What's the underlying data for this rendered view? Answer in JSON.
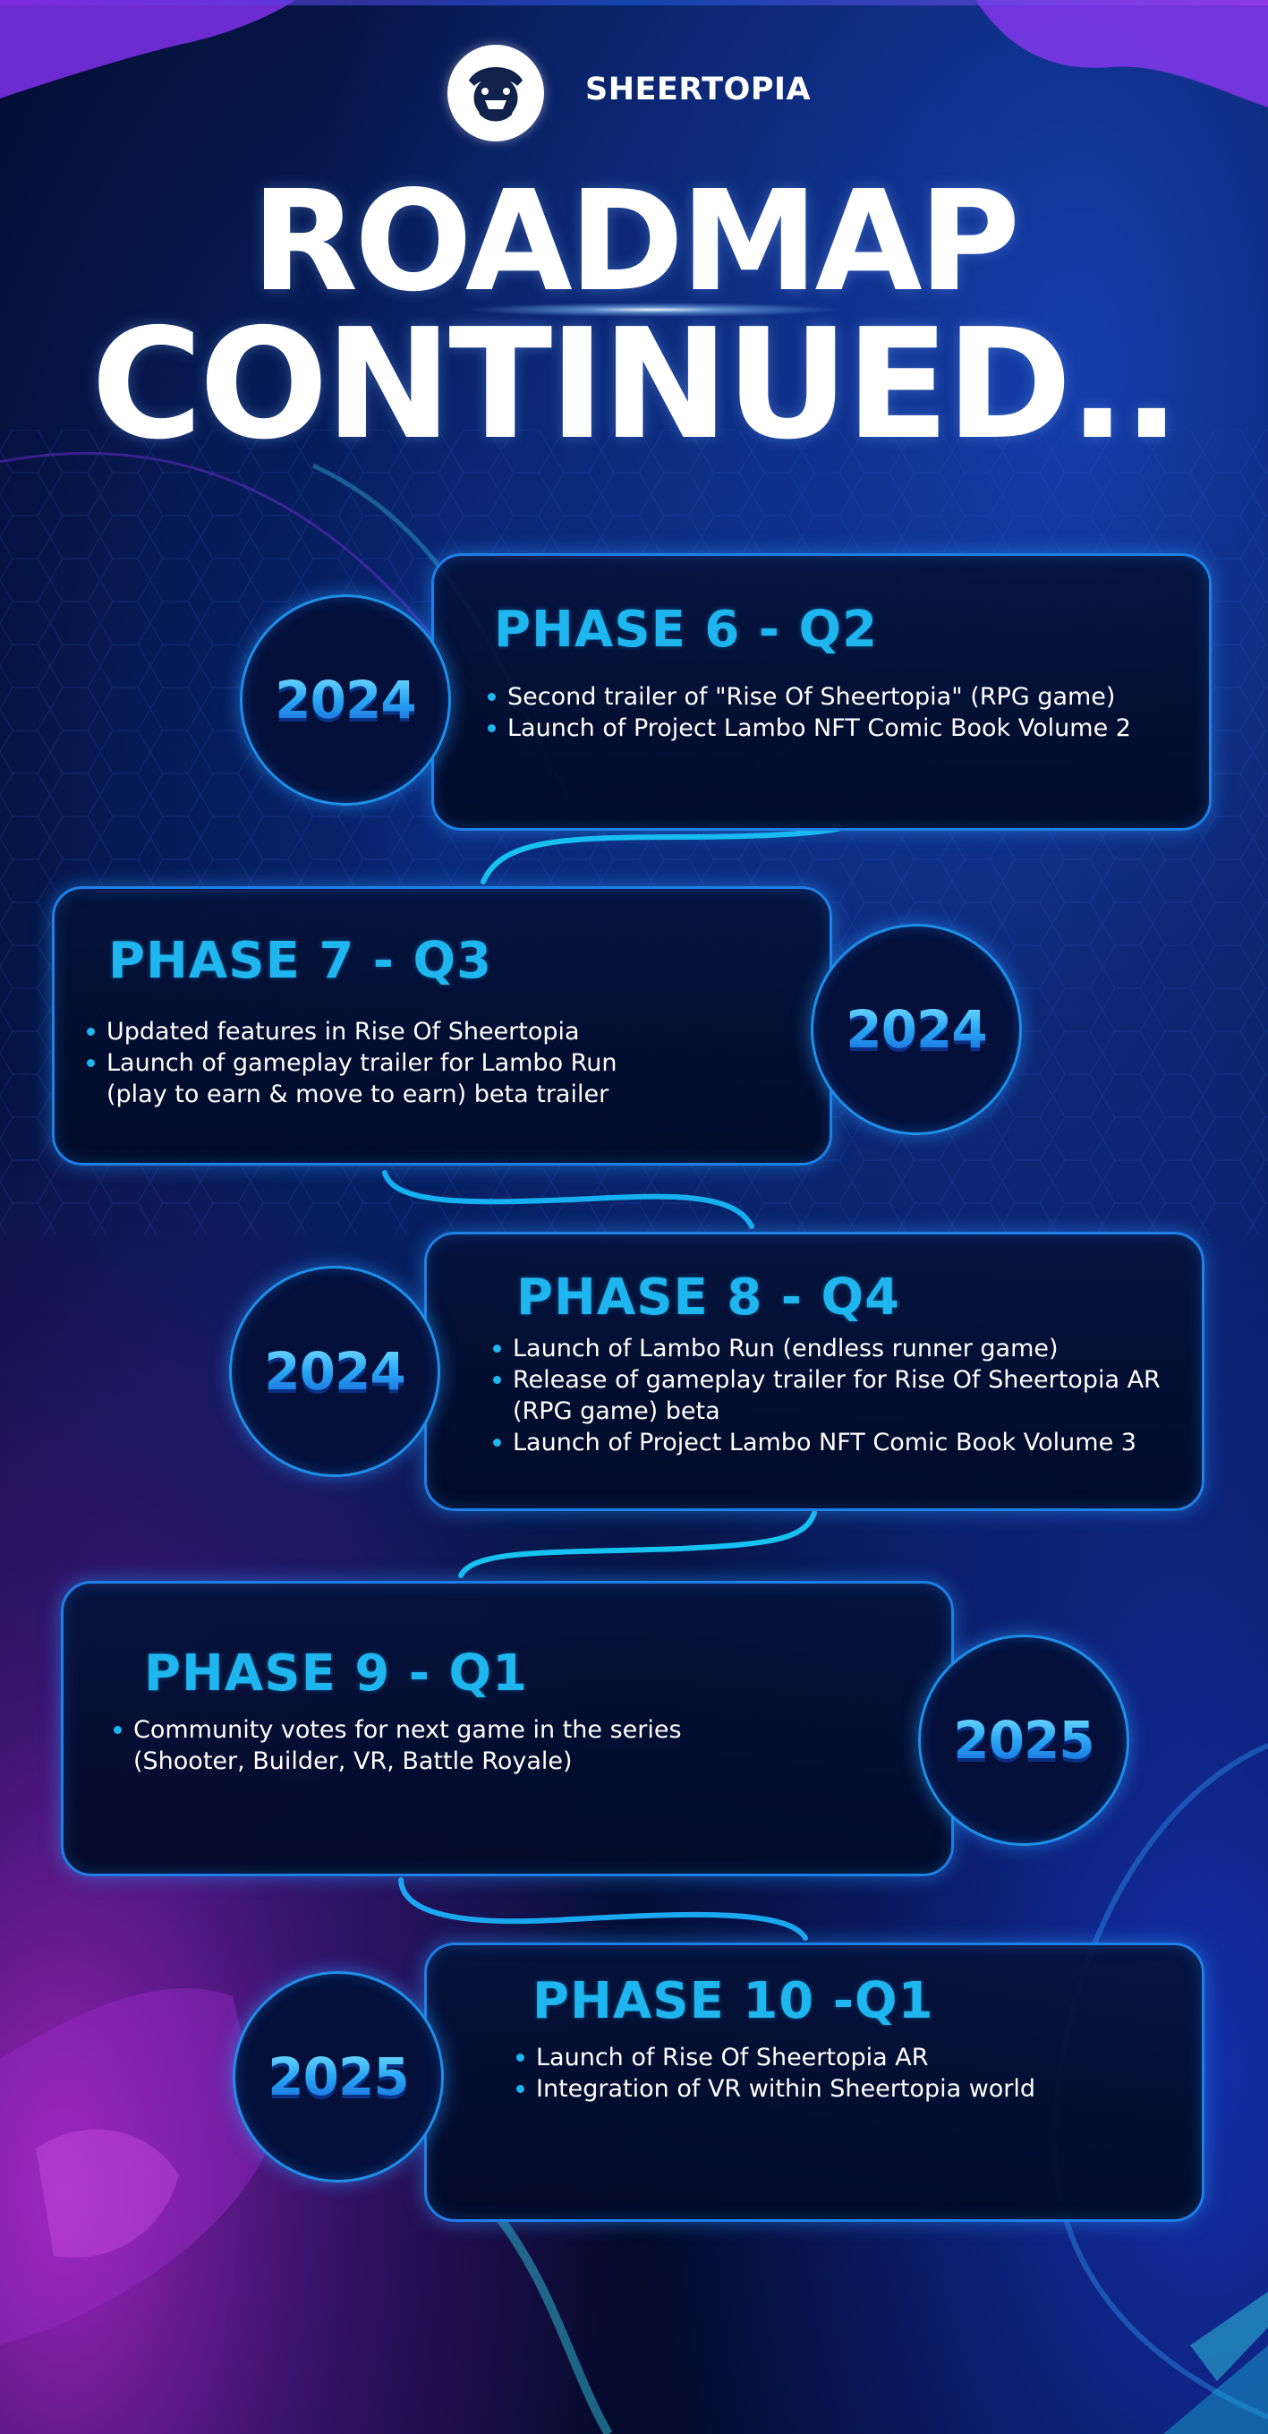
{
  "brand": {
    "name": "SHEERTOPIA",
    "logo_icon": "sheertopia-mascot-icon"
  },
  "title": {
    "line1": "ROADMAP",
    "line2": "CONTINUED.."
  },
  "colors": {
    "background": "#030a2a",
    "accent_cyan": "#1fb6f0",
    "card_border": "#1e7fe6",
    "purple_glow": "#b024d8"
  },
  "phases": [
    {
      "title": "PHASE 6 - Q2",
      "year": "2024",
      "items": [
        "Second trailer of \"Rise Of Sheertopia\" (RPG game)",
        "Launch of Project Lambo NFT Comic Book Volume 2"
      ]
    },
    {
      "title": "PHASE 7 - Q3",
      "year": "2024",
      "items": [
        "Updated features in Rise Of Sheertopia",
        "Launch of gameplay trailer for Lambo Run (play to earn & move to earn) beta trailer"
      ]
    },
    {
      "title": "PHASE 8 - Q4",
      "year": "2024",
      "items": [
        "Launch of Lambo Run (endless runner game)",
        "Release of gameplay trailer for Rise Of Sheertopia AR (RPG game) beta",
        "Launch of Project Lambo NFT Comic Book Volume 3"
      ]
    },
    {
      "title": "PHASE 9 - Q1",
      "year": "2025",
      "items": [
        "Community votes for next game in the series (Shooter, Builder, VR, Battle Royale)"
      ]
    },
    {
      "title": "PHASE 10 -Q1",
      "year": "2025",
      "items": [
        "Launch of Rise Of Sheertopia AR",
        "Integration of VR within Sheertopia world"
      ]
    }
  ]
}
